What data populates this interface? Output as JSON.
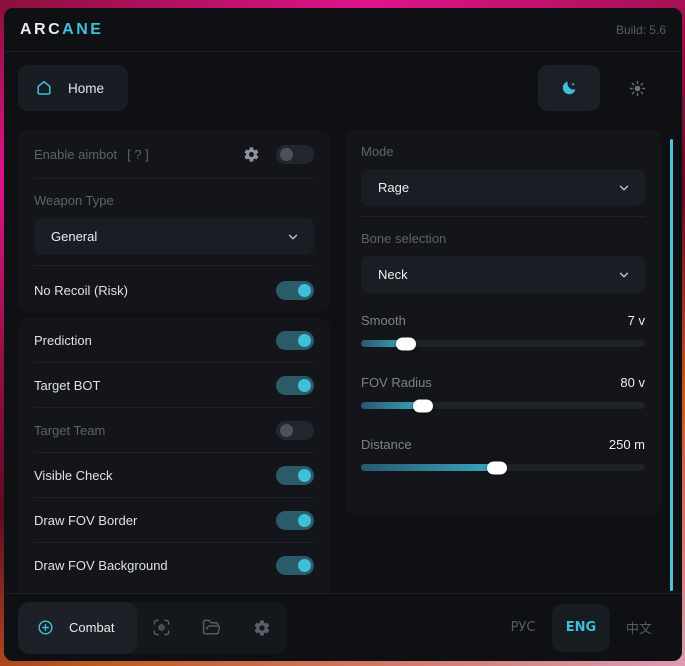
{
  "titlebar": {
    "brand_prefix": "ARC",
    "brand_suffix": "ANE",
    "build": "Build: 5.6"
  },
  "nav": {
    "home_label": "Home"
  },
  "theme": {
    "dark_selected": true
  },
  "aimbot_card": {
    "enable_label": "Enable aimbot",
    "enable_hint": "[ ? ]",
    "enable_on": false,
    "weapon_type_label": "Weapon Type",
    "weapon_type_value": "General",
    "no_recoil_label": "No Recoil (Risk)",
    "no_recoil_on": true
  },
  "toggles": [
    {
      "label": "Prediction",
      "on": true,
      "disabled": false
    },
    {
      "label": "Target BOT",
      "on": true,
      "disabled": false
    },
    {
      "label": "Target Team",
      "on": false,
      "disabled": true
    },
    {
      "label": "Visible Check",
      "on": true,
      "disabled": false
    },
    {
      "label": "Draw FOV Border",
      "on": true,
      "disabled": false
    },
    {
      "label": "Draw FOV Background",
      "on": true,
      "disabled": false
    }
  ],
  "right_card": {
    "mode_label": "Mode",
    "mode_value": "Rage",
    "bone_label": "Bone selection",
    "bone_value": "Neck",
    "sliders": [
      {
        "label": "Smooth",
        "value": "7 v",
        "fill_pct": 16
      },
      {
        "label": "FOV Radius",
        "value": "80 v",
        "fill_pct": 22
      },
      {
        "label": "Distance",
        "value": "250 m",
        "fill_pct": 48
      }
    ]
  },
  "footer": {
    "combat_label": "Combat",
    "languages": [
      {
        "label": "РУС",
        "active": false
      },
      {
        "label": "ENG",
        "active": true
      },
      {
        "label": "中文",
        "active": false
      }
    ]
  },
  "colors": {
    "accent": "#3fc0d8",
    "toggle_track_on": "#2b5a68",
    "scrollbar": "#4fc3d9"
  }
}
